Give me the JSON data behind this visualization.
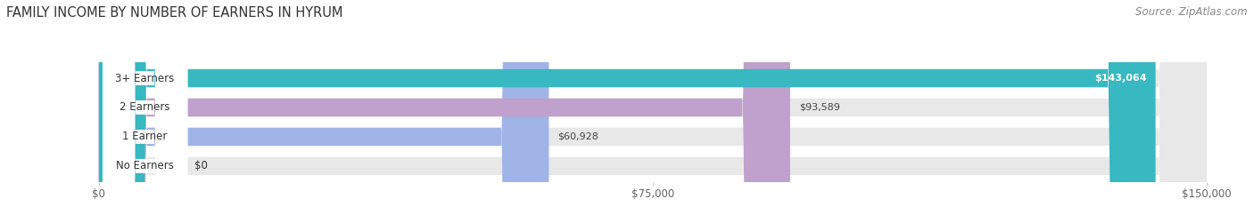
{
  "title": "FAMILY INCOME BY NUMBER OF EARNERS IN HYRUM",
  "source": "Source: ZipAtlas.com",
  "categories": [
    "No Earners",
    "1 Earner",
    "2 Earners",
    "3+ Earners"
  ],
  "values": [
    0,
    60928,
    93589,
    143064
  ],
  "bar_colors": [
    "#f0a0a8",
    "#a0b4e8",
    "#c0a0cc",
    "#38b8c0"
  ],
  "value_labels": [
    "$0",
    "$60,928",
    "$93,589",
    "$143,064"
  ],
  "x_ticks": [
    0,
    75000,
    150000
  ],
  "x_tick_labels": [
    "$0",
    "$75,000",
    "$150,000"
  ],
  "xlim": [
    0,
    150000
  ],
  "title_fontsize": 10.5,
  "source_fontsize": 8.5,
  "bar_height": 0.62,
  "background_color": "#ffffff"
}
